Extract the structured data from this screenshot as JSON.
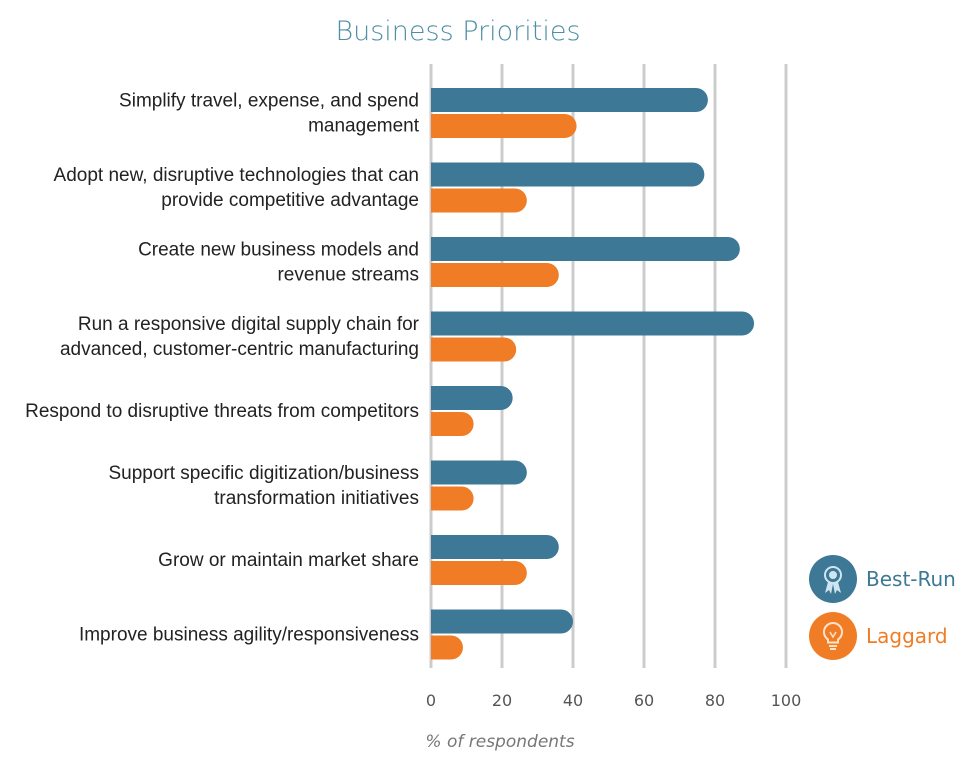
{
  "chart_data": {
    "type": "bar",
    "orientation": "horizontal",
    "title": "Business Priorities",
    "xlabel": "% of respondents",
    "ylabel": "",
    "xlim": [
      0,
      100
    ],
    "ticks": [
      "0",
      "20",
      "40",
      "60",
      "80",
      "100"
    ],
    "grid": true,
    "legend_position": "bottom-right",
    "categories": [
      [
        "Simplify travel, expense, and spend",
        "management"
      ],
      [
        "Adopt new, disruptive technologies that can",
        "provide competitive advantage"
      ],
      [
        "Create new business models and",
        "revenue streams"
      ],
      [
        "Run a responsive digital supply chain for",
        "advanced, customer-centric manufacturing"
      ],
      [
        "Respond to disruptive threats from competitors"
      ],
      [
        "Support specific digitization/business",
        "transformation initiatives"
      ],
      [
        "Grow or maintain market share"
      ],
      [
        "Improve business agility/responsiveness"
      ]
    ],
    "series": [
      {
        "name": "Best-Run",
        "color": "#3d7896",
        "icon": "ribbon-award-icon",
        "values": [
          78,
          77,
          87,
          91,
          23,
          27,
          36,
          40
        ]
      },
      {
        "name": "Laggard",
        "color": "#f07d26",
        "icon": "lightbulb-icon",
        "values": [
          41,
          27,
          36,
          24,
          12,
          12,
          27,
          9
        ]
      }
    ]
  },
  "colors": {
    "title": "#4f8fa6",
    "grid": "#cccccc",
    "best_run": "#3d7896",
    "laggard": "#f07d26"
  }
}
